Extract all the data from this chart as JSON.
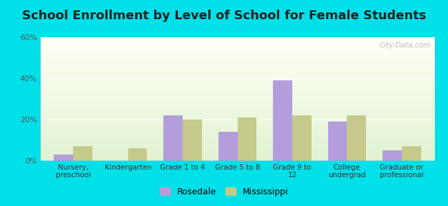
{
  "title": "School Enrollment by Level of School for Female Students",
  "categories": [
    "Nursery,\npreschool",
    "Kindergarten",
    "Grade 1 to 4",
    "Grade 5 to 8",
    "Grade 9 to\n12",
    "College\nundergrad",
    "Graduate or\nprofessional"
  ],
  "rosedale": [
    3,
    0,
    22,
    14,
    39,
    19,
    5
  ],
  "mississippi": [
    7,
    6,
    20,
    21,
    22,
    22,
    7
  ],
  "rosedale_color": "#b39ddb",
  "mississippi_color": "#c5c98a",
  "ylim": [
    0,
    60
  ],
  "yticks": [
    0,
    20,
    40,
    60
  ],
  "ytick_labels": [
    "0%",
    "20%",
    "40%",
    "60%"
  ],
  "background_outer": "#00e0e8",
  "title_fontsize": 13,
  "legend_labels": [
    "Rosedale",
    "Mississippi"
  ],
  "bar_width": 0.35,
  "watermark": "City-Data.com"
}
